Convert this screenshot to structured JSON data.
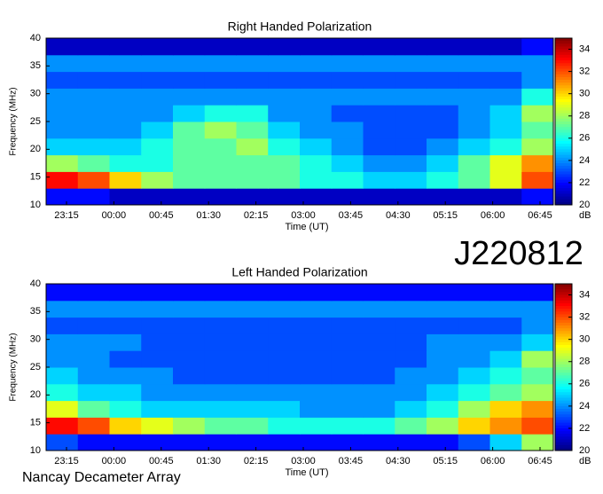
{
  "page": {
    "id_label": "J220812",
    "source": "Nancay Decameter Array"
  },
  "chart_data": [
    {
      "type": "heatmap",
      "title": "Right Handed Polarization",
      "x_label": "Time (UT)",
      "y_label": "Frequency (MHz)",
      "time_labels": [
        "23:15",
        "00:00",
        "00:45",
        "01:30",
        "02:15",
        "03:00",
        "03:45",
        "04:30",
        "05:15",
        "06:00",
        "06:45"
      ],
      "ylim": [
        10,
        40
      ],
      "yticks": [
        10,
        15,
        20,
        25,
        30,
        35,
        40
      ],
      "y_bins": [
        10,
        13,
        16,
        19,
        22,
        25,
        28,
        31,
        34,
        37,
        40
      ],
      "clim": [
        20,
        35
      ],
      "cticks": [
        20,
        22,
        24,
        26,
        28,
        30,
        32,
        34
      ],
      "colorbar_label": "dB",
      "colormap": "jet",
      "z": [
        [
          22,
          22,
          21,
          21,
          21,
          21,
          21,
          21,
          21,
          21,
          21,
          21,
          21,
          21,
          21,
          22
        ],
        [
          33,
          32,
          30,
          28,
          27,
          27,
          27,
          27,
          26,
          26,
          25,
          25,
          26,
          27,
          29,
          32
        ],
        [
          28,
          27,
          26,
          26,
          27,
          27,
          27,
          27,
          26,
          25,
          24,
          24,
          25,
          27,
          29,
          31
        ],
        [
          25,
          25,
          25,
          26,
          27,
          27,
          28,
          26,
          25,
          24,
          23,
          23,
          24,
          25,
          26,
          28
        ],
        [
          24,
          24,
          24,
          25,
          27,
          28,
          27,
          25,
          24,
          24,
          23,
          23,
          23,
          24,
          25,
          27
        ],
        [
          24,
          24,
          24,
          24,
          25,
          26,
          26,
          24,
          24,
          23,
          23,
          23,
          23,
          24,
          25,
          28
        ],
        [
          24,
          24,
          24,
          24,
          24,
          24,
          24,
          24,
          24,
          24,
          24,
          24,
          24,
          24,
          24,
          26
        ],
        [
          23,
          23,
          23,
          23,
          23,
          23,
          23,
          23,
          23,
          23,
          23,
          23,
          23,
          23,
          23,
          24
        ],
        [
          24,
          24,
          24,
          24,
          24,
          24,
          24,
          24,
          24,
          24,
          24,
          24,
          24,
          24,
          24,
          24
        ],
        [
          21,
          21,
          21,
          21,
          21,
          21,
          21,
          21,
          21,
          21,
          21,
          21,
          21,
          21,
          21,
          22
        ]
      ]
    },
    {
      "type": "heatmap",
      "title": "Left Handed Polarization",
      "x_label": "Time (UT)",
      "y_label": "Frequency (MHz)",
      "time_labels": [
        "23:15",
        "00:00",
        "00:45",
        "01:30",
        "02:15",
        "03:00",
        "03:45",
        "04:30",
        "05:15",
        "06:00",
        "06:45"
      ],
      "ylim": [
        10,
        40
      ],
      "yticks": [
        10,
        15,
        20,
        25,
        30,
        35,
        40
      ],
      "y_bins": [
        10,
        13,
        16,
        19,
        22,
        25,
        28,
        31,
        34,
        37,
        40
      ],
      "clim": [
        20,
        35
      ],
      "cticks": [
        20,
        22,
        24,
        26,
        28,
        30,
        32,
        34
      ],
      "colorbar_label": "dB",
      "colormap": "jet",
      "z": [
        [
          23,
          22,
          22,
          22,
          22,
          22,
          22,
          22,
          22,
          22,
          22,
          22,
          22,
          23,
          25,
          28
        ],
        [
          33,
          32,
          30,
          29,
          28,
          27,
          27,
          26,
          26,
          26,
          26,
          27,
          28,
          30,
          31,
          32
        ],
        [
          29,
          27,
          26,
          25,
          25,
          25,
          25,
          25,
          24,
          24,
          24,
          25,
          26,
          28,
          30,
          31
        ],
        [
          26,
          25,
          25,
          24,
          24,
          24,
          24,
          24,
          24,
          24,
          24,
          24,
          25,
          26,
          27,
          28
        ],
        [
          25,
          24,
          24,
          24,
          23,
          23,
          23,
          23,
          23,
          23,
          23,
          24,
          24,
          25,
          26,
          27
        ],
        [
          24,
          24,
          23,
          23,
          23,
          23,
          23,
          23,
          23,
          23,
          23,
          23,
          24,
          24,
          25,
          28
        ],
        [
          24,
          24,
          24,
          23,
          23,
          23,
          23,
          23,
          23,
          23,
          23,
          23,
          24,
          24,
          24,
          25
        ],
        [
          23,
          23,
          23,
          23,
          23,
          23,
          23,
          23,
          23,
          23,
          23,
          23,
          23,
          23,
          23,
          24
        ],
        [
          24,
          24,
          24,
          24,
          24,
          24,
          24,
          24,
          24,
          24,
          24,
          24,
          24,
          24,
          24,
          24
        ],
        [
          22,
          22,
          22,
          22,
          22,
          22,
          22,
          22,
          22,
          22,
          22,
          22,
          22,
          22,
          22,
          22
        ]
      ]
    }
  ]
}
